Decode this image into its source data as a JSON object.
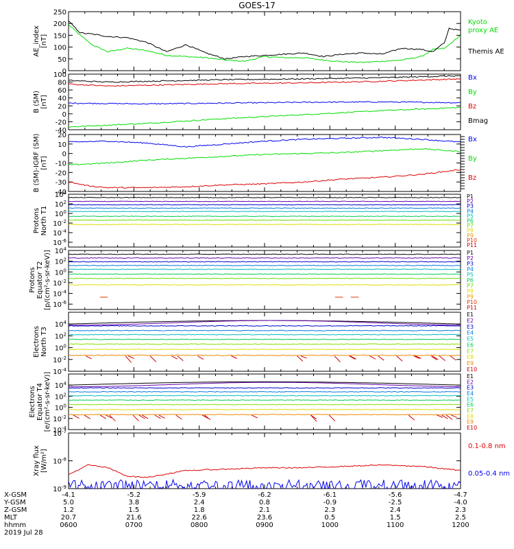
{
  "title": "GOES-17",
  "colors": {
    "black": "#000000",
    "green": "#00dd00",
    "blue": "#0000ee",
    "red": "#dd0000",
    "p_colors": [
      "#000000",
      "#6600aa",
      "#0000cc",
      "#0077dd",
      "#00bbbb",
      "#00cc55",
      "#66dd00",
      "#dddd00",
      "#ee9900",
      "#dd3300",
      "#cc0000"
    ],
    "e_colors": [
      "#000000",
      "#6600aa",
      "#0000cc",
      "#0077dd",
      "#00bbbb",
      "#00cc55",
      "#88dd00",
      "#dddd00",
      "#ee8800",
      "#cc0000"
    ]
  },
  "chart_data": [
    {
      "id": "ae",
      "type": "line",
      "ylabel": "AE_index\n[nT]",
      "ylim": [
        0,
        250
      ],
      "yticks": [
        "0",
        "50",
        "100",
        "150",
        "200",
        "250"
      ],
      "series": [
        {
          "name": "Kyoto proxy AE",
          "color": "green",
          "label_lines": [
            "Kyoto",
            "proxy AE"
          ],
          "x": [
            0,
            0.03,
            0.06,
            0.1,
            0.15,
            0.2,
            0.25,
            0.3,
            0.35,
            0.4,
            0.45,
            0.5,
            0.55,
            0.6,
            0.65,
            0.7,
            0.75,
            0.8,
            0.85,
            0.9,
            0.93,
            0.96,
            1.0
          ],
          "y": [
            195,
            150,
            110,
            80,
            95,
            85,
            65,
            60,
            55,
            45,
            40,
            60,
            55,
            55,
            45,
            38,
            35,
            40,
            45,
            60,
            90,
            95,
            150
          ]
        },
        {
          "name": "Themis AE",
          "color": "black",
          "label_lines": [
            "Themis AE"
          ],
          "x": [
            0,
            0.03,
            0.06,
            0.1,
            0.15,
            0.2,
            0.25,
            0.3,
            0.35,
            0.4,
            0.45,
            0.5,
            0.55,
            0.6,
            0.65,
            0.7,
            0.75,
            0.8,
            0.85,
            0.9,
            0.93,
            0.96,
            0.97,
            1.0
          ],
          "y": [
            210,
            160,
            155,
            145,
            140,
            120,
            80,
            110,
            75,
            50,
            60,
            65,
            70,
            75,
            60,
            70,
            75,
            70,
            95,
            90,
            80,
            120,
            180,
            170
          ]
        }
      ]
    },
    {
      "id": "bsm",
      "type": "line",
      "ylabel": "B (SM)\n[nT]",
      "ylim": [
        -40,
        100
      ],
      "yticks": [
        "-40",
        "-20",
        "0",
        "20",
        "40",
        "60",
        "80",
        "100"
      ],
      "series": [
        {
          "name": "Bx",
          "color": "blue",
          "label_lines": [
            "Bx"
          ],
          "x": [
            0,
            0.2,
            0.4,
            0.6,
            0.8,
            1.0
          ],
          "y": [
            27,
            25,
            27,
            29,
            30,
            28
          ]
        },
        {
          "name": "By",
          "color": "green",
          "label_lines": [
            "By"
          ],
          "x": [
            0,
            0.2,
            0.4,
            0.6,
            0.8,
            1.0
          ],
          "y": [
            -33,
            -24,
            -12,
            -2,
            8,
            16
          ]
        },
        {
          "name": "Bz",
          "color": "red",
          "label_lines": [
            "Bz"
          ],
          "x": [
            0,
            0.1,
            0.2,
            0.4,
            0.6,
            0.8,
            1.0
          ],
          "y": [
            75,
            70,
            72,
            76,
            78,
            82,
            88
          ]
        },
        {
          "name": "Bmag",
          "color": "black",
          "label_lines": [
            "Bmag"
          ],
          "x": [
            0,
            0.1,
            0.2,
            0.4,
            0.6,
            0.8,
            1.0
          ],
          "y": [
            84,
            80,
            82,
            86,
            88,
            91,
            96
          ]
        }
      ]
    },
    {
      "id": "bigrf",
      "type": "line",
      "ylabel": "B (SM)-IGRF (SM)\n[nT]",
      "ylim": [
        -40,
        20
      ],
      "yticks": [
        "-40",
        "-30",
        "-20",
        "-10",
        "0",
        "10",
        "20"
      ],
      "series": [
        {
          "name": "Bx",
          "color": "blue",
          "label_lines": [
            "Bx"
          ],
          "x": [
            0,
            0.1,
            0.2,
            0.3,
            0.4,
            0.5,
            0.6,
            0.7,
            0.8,
            0.9,
            1.0
          ],
          "y": [
            12,
            13,
            11,
            7,
            10,
            13,
            15,
            16,
            17,
            15,
            12
          ]
        },
        {
          "name": "By",
          "color": "green",
          "label_lines": [
            "By"
          ],
          "x": [
            0,
            0.1,
            0.2,
            0.3,
            0.4,
            0.5,
            0.6,
            0.7,
            0.8,
            0.9,
            1.0
          ],
          "y": [
            -12,
            -10,
            -7,
            -5,
            -3,
            -1,
            0,
            1,
            3,
            5,
            2
          ]
        },
        {
          "name": "Bz",
          "color": "red",
          "label_lines": [
            "Bz"
          ],
          "x": [
            0,
            0.05,
            0.1,
            0.2,
            0.3,
            0.4,
            0.5,
            0.6,
            0.7,
            0.8,
            0.9,
            1.0
          ],
          "y": [
            -30,
            -34,
            -36,
            -36,
            -35,
            -33,
            -32,
            -30,
            -27,
            -25,
            -22,
            -17
          ]
        }
      ]
    },
    {
      "id": "pnorth",
      "type": "line",
      "ylabel": "Protons\nNorth T1",
      "log": true,
      "ylim": [
        -7,
        4
      ],
      "yticks": [
        "10^4",
        "10^2",
        "10^0",
        "10^-2",
        "10^-4",
        "10^-6"
      ],
      "channels": [
        "P1",
        "P2",
        "P3",
        "P4",
        "P5",
        "P6",
        "P7",
        "P8",
        "P9",
        "P10",
        "P11"
      ],
      "levels": [
        3.3,
        2.5,
        1.8,
        1.1,
        0.4,
        -0.6,
        -1.4,
        -2.3,
        -9,
        -9,
        -9
      ]
    },
    {
      "id": "peq",
      "type": "line",
      "ylabel": "Protons\nEquator T2\n[p/(cm²-s-sr-keV)]",
      "log": true,
      "ylim": [
        -7,
        4
      ],
      "yticks": [
        "10^4",
        "10^2",
        "10^0",
        "10^-2",
        "10^-4",
        "10^-6"
      ],
      "channels": [
        "P1",
        "P2",
        "P3",
        "P4",
        "P5",
        "P6",
        "P7",
        "P8",
        "P9",
        "P10",
        "P11"
      ],
      "levels": [
        3.3,
        2.6,
        1.9,
        1.2,
        0.5,
        -0.4,
        -1.2,
        -2.4,
        -9,
        -4.7,
        -9
      ]
    },
    {
      "id": "enorth",
      "type": "line",
      "ylabel": "Electrons\nNorth T3",
      "log": true,
      "ylim": [
        -4,
        6
      ],
      "yticks": [
        "10^4",
        "10^2",
        "10^0",
        "10^-2",
        "10^-4"
      ],
      "channels": [
        "E1",
        "E2",
        "E3",
        "E4",
        "E5",
        "E6",
        "E7",
        "E8",
        "E9",
        "E10"
      ],
      "levels": [
        4.6,
        4.2,
        3.7,
        2.9,
        2.2,
        1.4,
        0.6,
        -0.3,
        -1.3,
        -9
      ]
    },
    {
      "id": "eeq",
      "type": "line",
      "ylabel": "Electrons\nEquator T4\n[e/(cm²-s-sr-keV)]",
      "log": true,
      "ylim": [
        -4,
        6
      ],
      "yticks": [
        "10^4",
        "10^2",
        "10^0",
        "10^-2",
        "10^-4"
      ],
      "channels": [
        "E1",
        "E2",
        "E3",
        "E4",
        "E5",
        "E6",
        "E7",
        "E8",
        "E9",
        "E10"
      ],
      "levels": [
        4.6,
        4.1,
        3.5,
        2.8,
        2.1,
        1.3,
        0.5,
        -0.4,
        -1.3,
        -9
      ]
    },
    {
      "id": "xray",
      "type": "line",
      "ylabel": "Xray flux\n[W/m²]",
      "log": true,
      "ylim": [
        -9,
        -7
      ],
      "yticks": [
        "10^-7",
        "10^-8",
        "10^-9"
      ],
      "series": [
        {
          "name": "0.1-0.8 nm",
          "color": "red",
          "label_lines": [
            "0.1-0.8 nm"
          ],
          "x": [
            0,
            0.05,
            0.1,
            0.15,
            0.2,
            0.3,
            0.4,
            0.5,
            0.6,
            0.7,
            0.8,
            0.9,
            1.0
          ],
          "y": [
            -8.5,
            -8.15,
            -8.25,
            -8.55,
            -8.6,
            -8.35,
            -8.3,
            -8.25,
            -8.25,
            -8.2,
            -8.15,
            -8.2,
            -8.35
          ]
        },
        {
          "name": "0.05-0.4 nm",
          "color": "blue",
          "label_lines": [
            "0.05-0.4 nm"
          ],
          "noisy": true,
          "base": -8.85
        }
      ]
    }
  ],
  "x_axis": {
    "row_labels": [
      "X-GSM",
      "Y-GSM",
      "Z-GSM",
      "MLT",
      "hhmm"
    ],
    "columns": [
      [
        "-4.1",
        "5.0",
        "1.2",
        "20.7",
        "0600"
      ],
      [
        "-5.2",
        "3.8",
        "1.5",
        "21.6",
        "0700"
      ],
      [
        "-5.9",
        "2.4",
        "1.8",
        "22.6",
        "0800"
      ],
      [
        "-6.2",
        "0.8",
        "2.1",
        "23.6",
        "0900"
      ],
      [
        "-6.1",
        "-0.9",
        "2.3",
        "0.5",
        "1000"
      ],
      [
        "-5.6",
        "-2.5",
        "2.4",
        "1.5",
        "1100"
      ],
      [
        "-4.7",
        "-4.0",
        "2.3",
        "2.5",
        "1200"
      ]
    ],
    "date": "2019 Jul 28"
  }
}
